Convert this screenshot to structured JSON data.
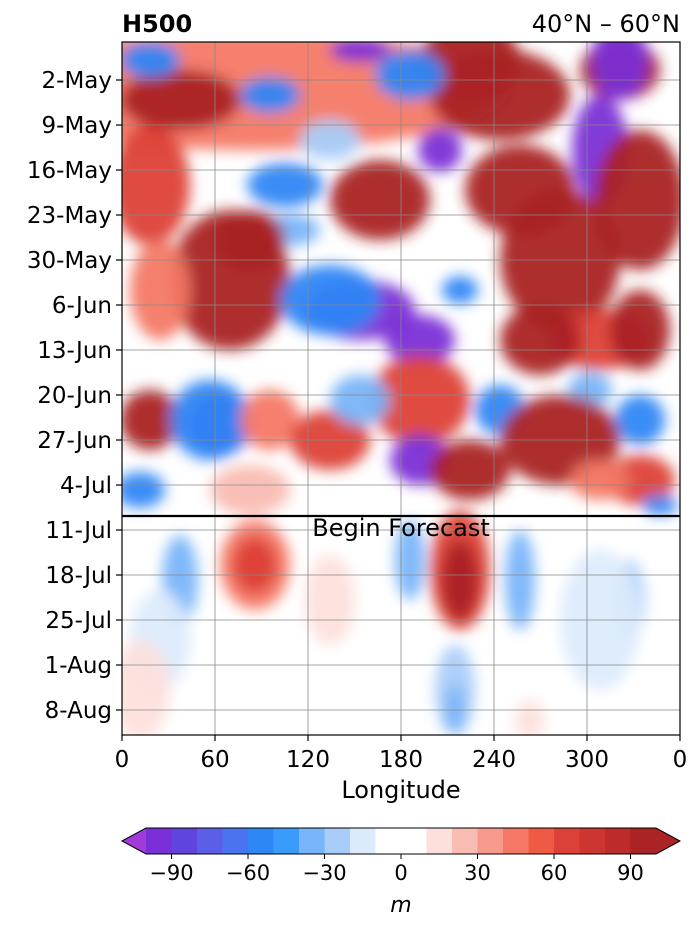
{
  "chart_data": {
    "type": "heatmap",
    "title_left": "H500",
    "title_right": "40°N – 60°N",
    "xlabel": "Longitude",
    "x_ticks": [
      "0",
      "60",
      "120",
      "180",
      "240",
      "300",
      "0"
    ],
    "y_ticks": [
      "2-May",
      "9-May",
      "16-May",
      "23-May",
      "30-May",
      "6-Jun",
      "13-Jun",
      "20-Jun",
      "27-Jun",
      "4-Jul",
      "11-Jul",
      "18-Jul",
      "25-Jul",
      "1-Aug",
      "8-Aug"
    ],
    "annotation": "Begin Forecast",
    "forecast_start": "8-Jul",
    "colorbar": {
      "label": "m",
      "ticks": [
        "−90",
        "−60",
        "−30",
        "0",
        "30",
        "60",
        "90"
      ],
      "tick_values": [
        -90,
        -60,
        -30,
        0,
        30,
        60,
        90
      ],
      "levels": [
        -100,
        -90,
        -80,
        -70,
        -60,
        -50,
        -40,
        -30,
        -20,
        -10,
        10,
        20,
        30,
        40,
        50,
        60,
        70,
        80,
        90,
        100
      ],
      "colors": [
        "#7b2fd6",
        "#6144de",
        "#5d5ee8",
        "#4a73ef",
        "#2f86f5",
        "#3a9cfa",
        "#78b4f9",
        "#a9cdf9",
        "#dcebfc",
        "#ffffff",
        "#fde0dc",
        "#f9bcb2",
        "#f79a8b",
        "#f47865",
        "#ef5a45",
        "#dd4036",
        "#cd3530",
        "#bd2b2a",
        "#aa2325"
      ],
      "extend_low": "#a239d9",
      "extend_high": "#aa2325"
    },
    "grid": true
  }
}
